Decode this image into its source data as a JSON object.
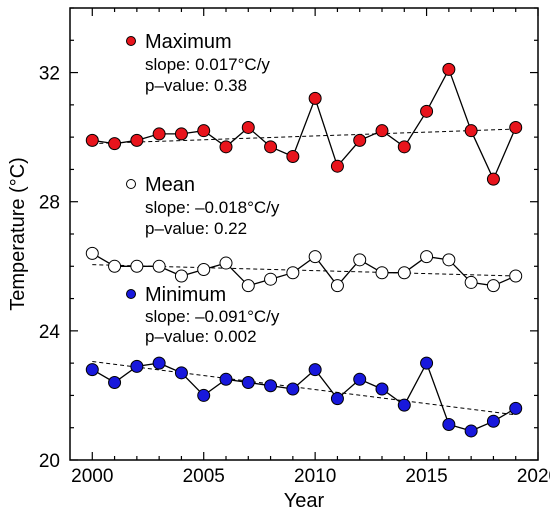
{
  "chart_data": {
    "type": "line",
    "xlabel": "Year",
    "ylabel": "Temperature (°C)",
    "xlim": [
      1999,
      2020
    ],
    "ylim": [
      20,
      34
    ],
    "xticks": [
      "2000",
      "2005",
      "2010",
      "2015",
      "2020"
    ],
    "yticks": [
      "20",
      "24",
      "28",
      "32"
    ],
    "grid": false,
    "x": [
      2000,
      2001,
      2002,
      2003,
      2004,
      2005,
      2006,
      2007,
      2008,
      2009,
      2010,
      2011,
      2012,
      2013,
      2014,
      2015,
      2016,
      2017,
      2018,
      2019
    ],
    "series": [
      {
        "name": "Maximum",
        "slope_label": "slope: 0.017°C/y",
        "pvalue_label": "p–value: 0.38",
        "color": "#e8141c",
        "values": [
          29.9,
          29.8,
          29.9,
          30.1,
          30.1,
          30.2,
          29.7,
          30.3,
          29.7,
          29.4,
          31.2,
          29.1,
          29.9,
          30.2,
          29.7,
          30.8,
          32.1,
          30.2,
          28.7,
          30.3
        ],
        "trend": [
          29.8,
          30.25
        ]
      },
      {
        "name": "Mean",
        "slope_label": "slope: –0.018°C/y",
        "pvalue_label": "p–value: 0.22",
        "color": "#ffffff",
        "values": [
          26.4,
          26.0,
          26.0,
          26.0,
          25.7,
          25.9,
          26.1,
          25.4,
          25.6,
          25.8,
          26.3,
          25.4,
          26.2,
          25.8,
          25.8,
          26.3,
          26.2,
          25.5,
          25.4,
          25.7
        ],
        "trend": [
          26.05,
          25.7
        ]
      },
      {
        "name": "Minimum",
        "slope_label": "slope: –0.091°C/y",
        "pvalue_label": "p–value: 0.002",
        "color": "#1818dc",
        "values": [
          22.8,
          22.4,
          22.9,
          23.0,
          22.7,
          22.0,
          22.5,
          22.4,
          22.3,
          22.2,
          22.8,
          21.9,
          22.5,
          22.2,
          21.7,
          23.0,
          21.1,
          20.9,
          21.2,
          21.6
        ],
        "trend": [
          23.05,
          21.4
        ]
      }
    ]
  }
}
